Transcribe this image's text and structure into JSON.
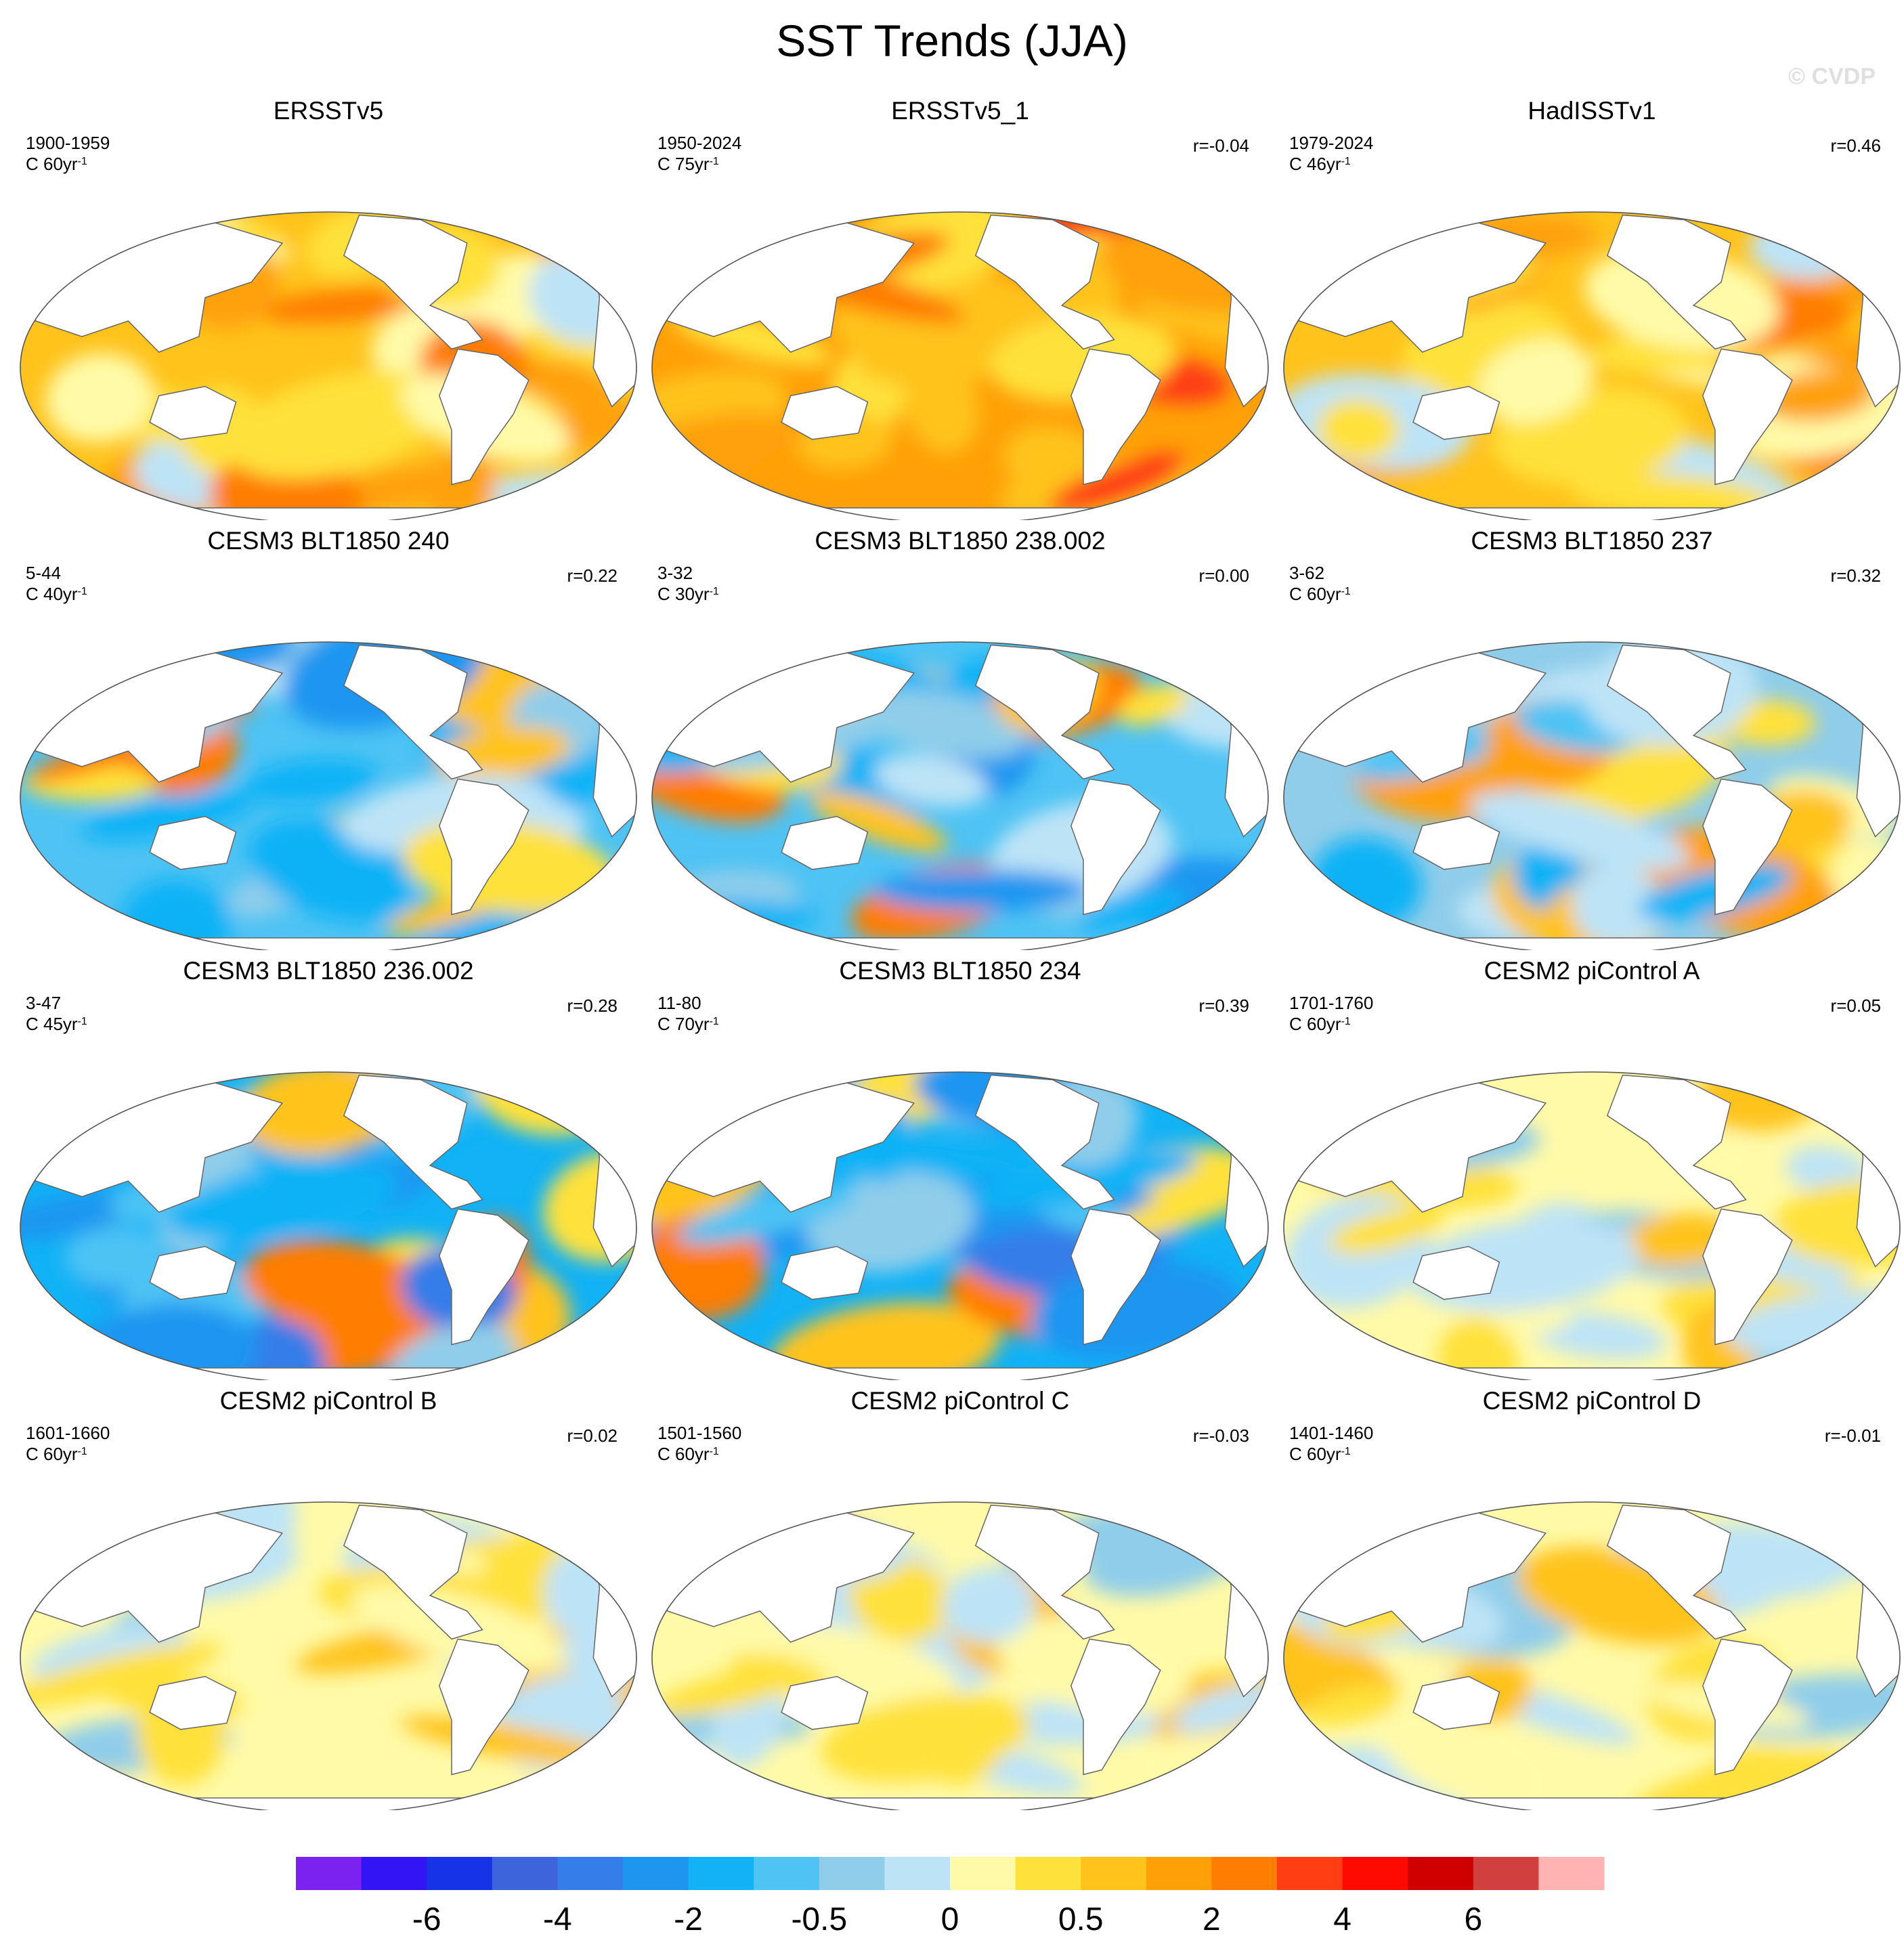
{
  "figure": {
    "title": "SST Trends (JJA)",
    "watermark": "© CVDP"
  },
  "panels": [
    {
      "title": "ERSSTv5",
      "period": "1900-1959",
      "units": "C 60yr",
      "units_exp": "-1",
      "corr": "",
      "bg": "warm"
    },
    {
      "title": "ERSSTv5_1",
      "period": "1950-2024",
      "units": "C 75yr",
      "units_exp": "-1",
      "corr": "r=-0.04",
      "bg": "hot"
    },
    {
      "title": "HadISSTv1",
      "period": "1979-2024",
      "units": "C 46yr",
      "units_exp": "-1",
      "corr": "r=0.46",
      "bg": "warm"
    },
    {
      "title": "CESM3 BLT1850 240",
      "period": "5-44",
      "units": "C 40yr",
      "units_exp": "-1",
      "corr": "r=0.22",
      "bg": "cool"
    },
    {
      "title": "CESM3 BLT1850 238.002",
      "period": "3-32",
      "units": "C 30yr",
      "units_exp": "-1",
      "corr": "r=0.00",
      "bg": "cool"
    },
    {
      "title": "CESM3 BLT1850 237",
      "period": "3-62",
      "units": "C 60yr",
      "units_exp": "-1",
      "corr": "r=0.32",
      "bg": "mixcool"
    },
    {
      "title": "CESM3 BLT1850 236.002",
      "period": "3-47",
      "units": "C 45yr",
      "units_exp": "-1",
      "corr": "r=0.28",
      "bg": "cold"
    },
    {
      "title": "CESM3 BLT1850 234",
      "period": "11-80",
      "units": "C 70yr",
      "units_exp": "-1",
      "corr": "r=0.39",
      "bg": "cold"
    },
    {
      "title": "CESM2 piControl A",
      "period": "1701-1760",
      "units": "C 60yr",
      "units_exp": "-1",
      "corr": "r=0.05",
      "bg": "neutral"
    },
    {
      "title": "CESM2 piControl B",
      "period": "1601-1660",
      "units": "C 60yr",
      "units_exp": "-1",
      "corr": "r=0.02",
      "bg": "neutral"
    },
    {
      "title": "CESM2 piControl C",
      "period": "1501-1560",
      "units": "C 60yr",
      "units_exp": "-1",
      "corr": "r=-0.03",
      "bg": "neutral"
    },
    {
      "title": "CESM2 piControl D",
      "period": "1401-1460",
      "units": "C 60yr",
      "units_exp": "-1",
      "corr": "r=-0.01",
      "bg": "neutral"
    }
  ],
  "colorbar": {
    "colors": [
      "#7b22f0",
      "#3314f5",
      "#1733e6",
      "#3e64db",
      "#357de8",
      "#1e96f0",
      "#11b2f6",
      "#4ec3f4",
      "#8fcdea",
      "#bde3f6",
      "#fffaa8",
      "#ffe13b",
      "#ffc31c",
      "#ffa008",
      "#ff7d00",
      "#ff3e14",
      "#ff0a00",
      "#d00000",
      "#d13f3f",
      "#ffb3b3"
    ],
    "labels": [
      "-6",
      "-4",
      "-2",
      "-0.5",
      "0",
      "0.5",
      "2",
      "4",
      "6"
    ]
  },
  "colors": {
    "land": "#ffffff",
    "coast": "#666666",
    "frame": "#555555"
  }
}
